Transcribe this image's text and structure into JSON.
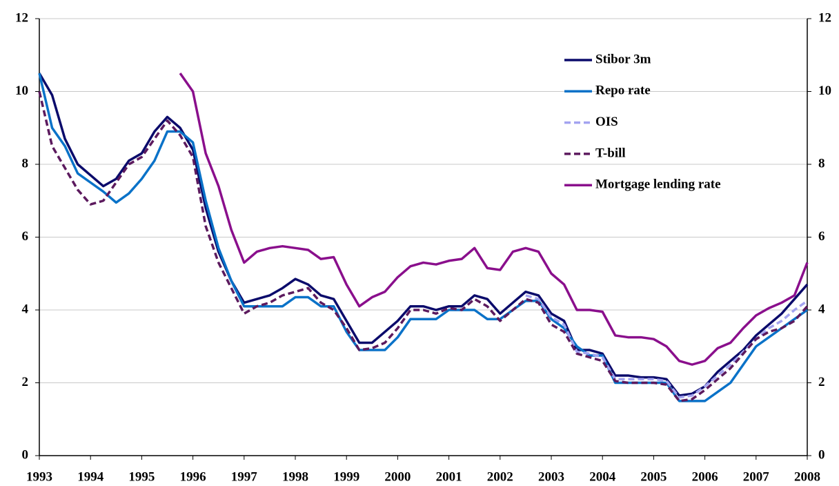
{
  "chart_data": {
    "type": "line",
    "x": [
      1993,
      1993.25,
      1993.5,
      1993.75,
      1994,
      1994.25,
      1994.5,
      1994.75,
      1995,
      1995.25,
      1995.5,
      1995.75,
      1996,
      1996.25,
      1996.5,
      1996.75,
      1997,
      1997.25,
      1997.5,
      1997.75,
      1998,
      1998.25,
      1998.5,
      1998.75,
      1999,
      1999.25,
      1999.5,
      1999.75,
      2000,
      2000.25,
      2000.5,
      2000.75,
      2001,
      2001.25,
      2001.5,
      2001.75,
      2002,
      2002.25,
      2002.5,
      2002.75,
      2003,
      2003.25,
      2003.5,
      2003.75,
      2004,
      2004.25,
      2004.5,
      2004.75,
      2005,
      2005.25,
      2005.5,
      2005.75,
      2006,
      2006.25,
      2006.5,
      2006.75,
      2007,
      2007.25,
      2007.5,
      2007.75,
      2008
    ],
    "xlim": [
      1993,
      2008
    ],
    "xticks": [
      1993,
      1994,
      1995,
      1996,
      1997,
      1998,
      1999,
      2000,
      2001,
      2002,
      2003,
      2004,
      2005,
      2006,
      2007,
      2008
    ],
    "ylim": [
      0,
      12
    ],
    "yticks": [
      0,
      2,
      4,
      6,
      8,
      10,
      12
    ],
    "y2lim": [
      0,
      12
    ],
    "y2ticks": [
      0,
      2,
      4,
      6,
      8,
      10,
      12
    ],
    "grid": true,
    "legend": "upper right",
    "series": [
      {
        "name": "Stibor 3m",
        "color": "#0b0b6b",
        "dashed": false,
        "values": [
          10.5,
          9.9,
          8.7,
          8.0,
          7.7,
          7.4,
          7.6,
          8.1,
          8.3,
          8.9,
          9.3,
          9.0,
          8.4,
          6.8,
          5.6,
          4.8,
          4.2,
          4.3,
          4.4,
          4.6,
          4.85,
          4.7,
          4.4,
          4.3,
          3.7,
          3.1,
          3.1,
          3.4,
          3.7,
          4.1,
          4.1,
          4.0,
          4.1,
          4.1,
          4.4,
          4.3,
          3.9,
          4.2,
          4.5,
          4.4,
          3.9,
          3.7,
          2.9,
          2.9,
          2.8,
          2.2,
          2.2,
          2.15,
          2.15,
          2.1,
          1.65,
          1.7,
          1.9,
          2.3,
          2.6,
          2.9,
          3.3,
          3.6,
          3.9,
          4.3,
          4.7
        ]
      },
      {
        "name": "Repo rate",
        "color": "#0a72c8",
        "dashed": false,
        "values": [
          10.5,
          9.0,
          8.5,
          7.75,
          7.5,
          7.25,
          6.95,
          7.2,
          7.6,
          8.1,
          8.9,
          8.9,
          8.6,
          7.0,
          5.7,
          4.8,
          4.1,
          4.1,
          4.1,
          4.1,
          4.35,
          4.35,
          4.1,
          4.1,
          3.4,
          2.9,
          2.9,
          2.9,
          3.25,
          3.75,
          3.75,
          3.75,
          4.0,
          4.0,
          4.0,
          3.75,
          3.75,
          4.0,
          4.25,
          4.25,
          3.75,
          3.5,
          3.0,
          2.75,
          2.75,
          2.0,
          2.0,
          2.0,
          2.0,
          2.0,
          1.5,
          1.5,
          1.5,
          1.75,
          2.0,
          2.5,
          3.0,
          3.25,
          3.5,
          3.75,
          4.0
        ]
      },
      {
        "name": "OIS",
        "color": "#a3a3f0",
        "dashed": true,
        "values": [
          null,
          null,
          null,
          null,
          null,
          null,
          null,
          null,
          null,
          null,
          null,
          null,
          null,
          null,
          null,
          null,
          null,
          null,
          null,
          null,
          null,
          null,
          null,
          null,
          null,
          null,
          null,
          null,
          null,
          null,
          null,
          null,
          null,
          null,
          null,
          null,
          null,
          null,
          4.4,
          4.3,
          3.8,
          3.6,
          2.85,
          2.8,
          2.7,
          2.1,
          2.1,
          2.1,
          2.1,
          2.05,
          1.6,
          1.65,
          1.9,
          2.2,
          2.5,
          2.85,
          3.2,
          3.5,
          3.7,
          4.0,
          4.25
        ]
      },
      {
        "name": "T-bill",
        "color": "#5c1a5e",
        "dashed": true,
        "values": [
          10.0,
          8.5,
          7.9,
          7.3,
          6.9,
          7.0,
          7.5,
          8.0,
          8.2,
          8.7,
          9.2,
          8.8,
          8.2,
          6.3,
          5.3,
          4.6,
          3.9,
          4.1,
          4.2,
          4.4,
          4.5,
          4.6,
          4.2,
          4.0,
          3.5,
          2.9,
          2.95,
          3.1,
          3.5,
          4.0,
          4.0,
          3.9,
          4.05,
          4.0,
          4.3,
          4.1,
          3.7,
          4.0,
          4.3,
          4.2,
          3.6,
          3.4,
          2.8,
          2.7,
          2.6,
          2.05,
          2.0,
          2.0,
          2.0,
          1.95,
          1.5,
          1.55,
          1.8,
          2.1,
          2.4,
          2.8,
          3.2,
          3.4,
          3.5,
          3.7,
          4.1
        ]
      },
      {
        "name": "Mortgage lending rate",
        "color": "#8a0f8c",
        "dashed": false,
        "values": [
          null,
          null,
          null,
          null,
          null,
          null,
          null,
          null,
          null,
          null,
          null,
          10.5,
          10.0,
          8.3,
          7.4,
          6.2,
          5.3,
          5.6,
          5.7,
          5.75,
          5.7,
          5.65,
          5.4,
          5.45,
          4.7,
          4.1,
          4.35,
          4.5,
          4.9,
          5.2,
          5.3,
          5.25,
          5.35,
          5.4,
          5.7,
          5.15,
          5.1,
          5.6,
          5.7,
          5.6,
          5.0,
          4.7,
          4.0,
          4.0,
          3.95,
          3.3,
          3.25,
          3.25,
          3.2,
          3.0,
          2.6,
          2.5,
          2.6,
          2.95,
          3.1,
          3.5,
          3.85,
          4.05,
          4.2,
          4.4,
          5.3
        ]
      }
    ]
  }
}
